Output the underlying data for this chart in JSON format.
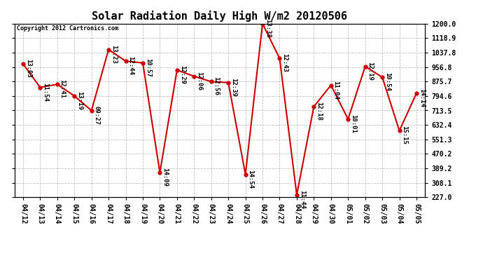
{
  "title": "Solar Radiation Daily High W/m2 20120506",
  "copyright": "Copyright 2012 Cartronics.com",
  "dates": [
    "04/12",
    "04/13",
    "04/14",
    "04/15",
    "04/16",
    "04/17",
    "04/18",
    "04/19",
    "04/20",
    "04/21",
    "04/22",
    "04/23",
    "04/24",
    "04/25",
    "04/26",
    "04/27",
    "04/28",
    "04/29",
    "04/30",
    "05/01",
    "05/02",
    "05/03",
    "05/04",
    "05/05"
  ],
  "values": [
    975,
    843,
    860,
    795,
    713,
    1055,
    990,
    980,
    365,
    940,
    905,
    875,
    870,
    355,
    1200,
    1005,
    240,
    735,
    855,
    665,
    960,
    900,
    600,
    810
  ],
  "time_labels": [
    "13:03",
    "11:54",
    "12:41",
    "13:19",
    "09:27",
    "13:23",
    "12:44",
    "10:57",
    "14:09",
    "12:29",
    "12:06",
    "12:56",
    "12:39",
    "14:54",
    "13:38",
    "12:43",
    "11:44",
    "12:18",
    "11:04",
    "10:01",
    "12:19",
    "10:54",
    "15:15",
    "14:14"
  ],
  "ylim": [
    227.0,
    1200.0
  ],
  "yticks": [
    227.0,
    308.1,
    389.2,
    470.2,
    551.3,
    632.4,
    713.5,
    794.6,
    875.7,
    956.8,
    1037.8,
    1118.9,
    1200.0
  ],
  "ytick_labels": [
    "227.0",
    "308.1",
    "389.2",
    "470.2",
    "551.3",
    "632.4",
    "713.5",
    "794.6",
    "875.7",
    "956.8",
    "1037.8",
    "1118.9",
    "1200.0"
  ],
  "line_color": "#cc0000",
  "marker_color": "#cc0000",
  "bg_color": "#ffffff",
  "grid_color": "#c0c0c0",
  "title_fontsize": 11,
  "tick_fontsize": 7,
  "label_fontsize": 6.5
}
